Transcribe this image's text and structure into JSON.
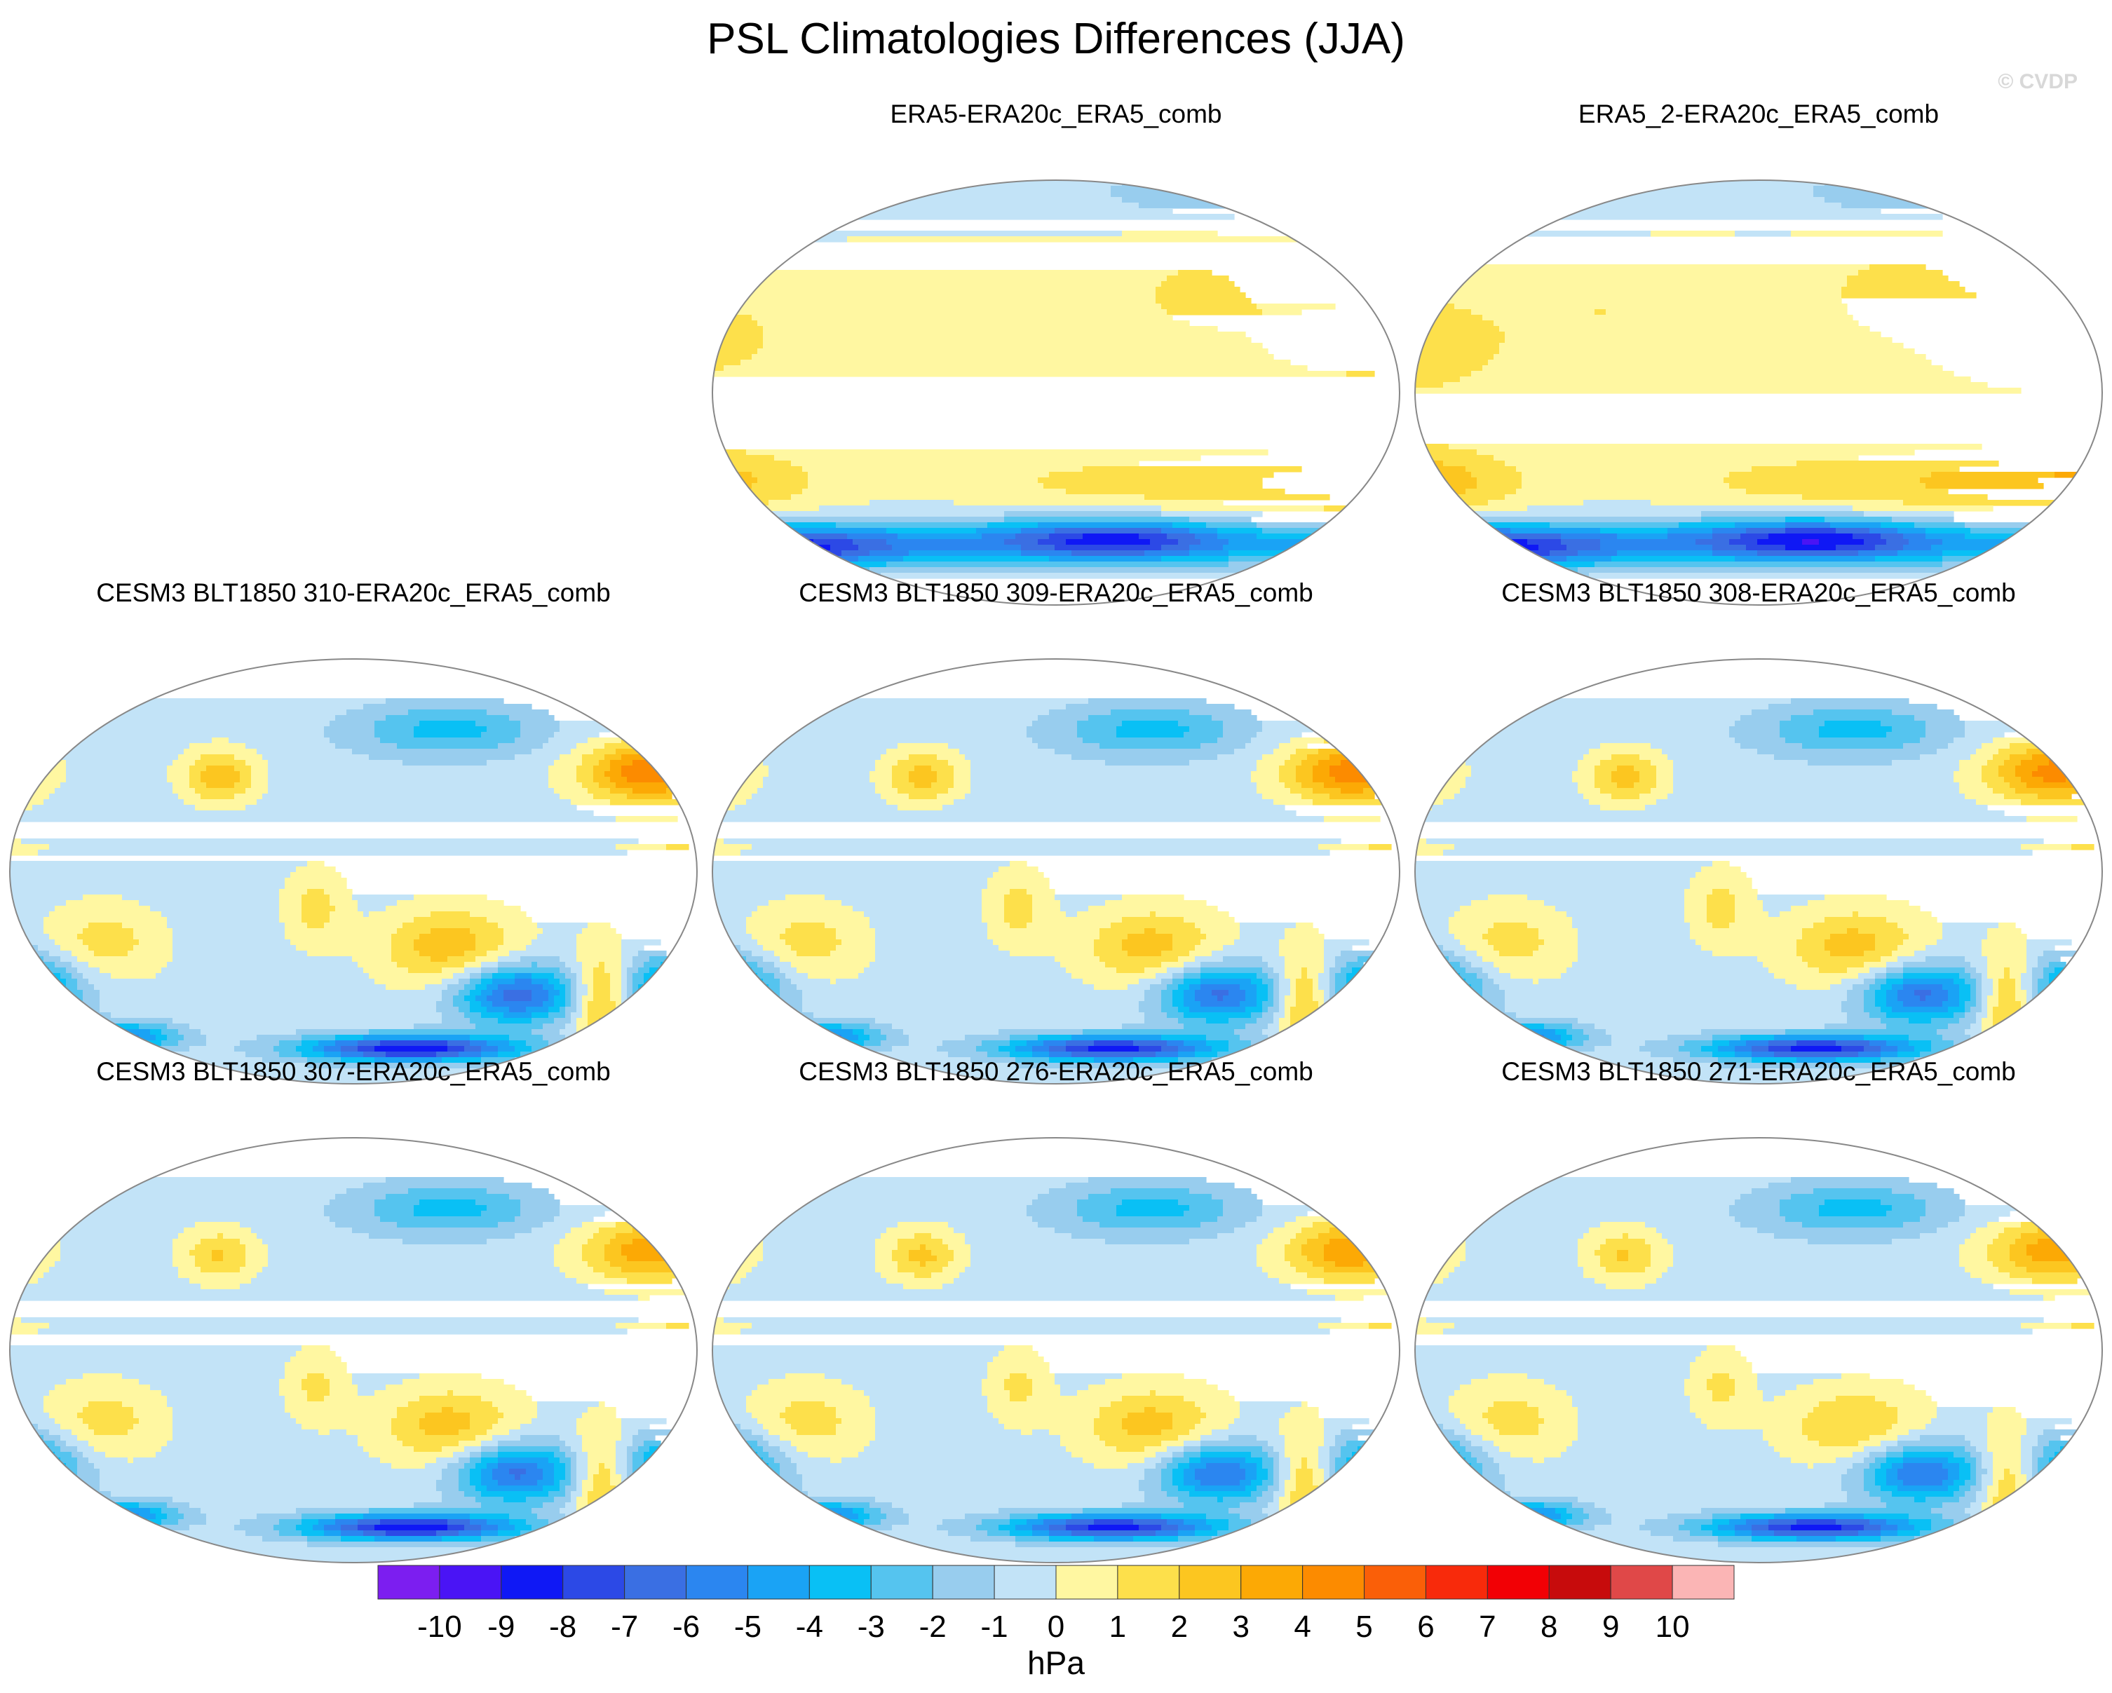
{
  "figure": {
    "title": "PSL Climatologies Differences (JJA)",
    "watermark": "© CVDP"
  },
  "chart_data": {
    "type": "heatmap",
    "projection": "robinson",
    "units": "hPa",
    "season": "JJA",
    "variable": "PSL",
    "colorbar": {
      "label": "hPa",
      "levels": [
        "-10",
        "-9",
        "-8",
        "-7",
        "-6",
        "-5",
        "-4",
        "-3",
        "-2",
        "-1",
        "0",
        "1",
        "2",
        "3",
        "4",
        "5",
        "6",
        "7",
        "8",
        "9",
        "10"
      ],
      "colors": [
        "#7c1ef0",
        "#4a14f5",
        "#0f18f5",
        "#2c49e6",
        "#3a6fe3",
        "#2b86f0",
        "#1aa3f5",
        "#09c0f5",
        "#55c4ef",
        "#98cdee",
        "#c2e3f7",
        "#fff7a1",
        "#fde04b",
        "#fcc620",
        "#fca905",
        "#fc8b00",
        "#fa5f08",
        "#f82a0b",
        "#f20005",
        "#c70b0c",
        "#e04848",
        "#fbb5b5"
      ]
    },
    "panels": [
      {
        "title": "ERA5-ERA20c_ERA5_comb",
        "kind": "reanalysis",
        "blobs": [
          {
            "lon": 150,
            "lat": 20,
            "sx": 75,
            "sy": 22,
            "v": 0.8
          },
          {
            "lon": -150,
            "lat": 25,
            "sx": 45,
            "sy": 18,
            "v": 0.7
          },
          {
            "lon": -45,
            "lat": 35,
            "sx": 30,
            "sy": 13,
            "v": 0.7
          },
          {
            "lon": 100,
            "lat": 45,
            "sx": 25,
            "sy": 12,
            "v": 0.9
          },
          {
            "lon": 130,
            "lat": -38,
            "sx": 55,
            "sy": 10,
            "v": 1.6
          },
          {
            "lon": -150,
            "lat": -38,
            "sx": 40,
            "sy": 10,
            "v": 2.0
          },
          {
            "lon": 30,
            "lat": -38,
            "sx": 40,
            "sy": 8,
            "v": 0.8
          },
          {
            "lon": 180,
            "lat": 85,
            "sx": 80,
            "sy": 8,
            "v": -3.2
          },
          {
            "lon": 0,
            "lat": -64,
            "sx": 200,
            "sy": 7,
            "v": -4.2
          },
          {
            "lon": -120,
            "lat": -66,
            "sx": 45,
            "sy": 6,
            "v": -5.5
          },
          {
            "lon": 60,
            "lat": -62,
            "sx": 40,
            "sy": 6,
            "v": -4.8
          }
        ]
      },
      {
        "title": "ERA5_2-ERA20c_ERA5_comb",
        "kind": "reanalysis",
        "blobs": [
          {
            "lon": 150,
            "lat": 18,
            "sx": 85,
            "sy": 24,
            "v": 0.9
          },
          {
            "lon": -150,
            "lat": 22,
            "sx": 50,
            "sy": 20,
            "v": 0.8
          },
          {
            "lon": -45,
            "lat": 35,
            "sx": 30,
            "sy": 13,
            "v": 0.8
          },
          {
            "lon": 100,
            "lat": 45,
            "sx": 25,
            "sy": 12,
            "v": 1.1
          },
          {
            "lon": 130,
            "lat": -38,
            "sx": 55,
            "sy": 10,
            "v": 1.8
          },
          {
            "lon": -150,
            "lat": -38,
            "sx": 40,
            "sy": 10,
            "v": 2.4
          },
          {
            "lon": 30,
            "lat": -38,
            "sx": 40,
            "sy": 8,
            "v": 0.9
          },
          {
            "lon": 180,
            "lat": 85,
            "sx": 80,
            "sy": 8,
            "v": -3.2
          },
          {
            "lon": 0,
            "lat": -64,
            "sx": 200,
            "sy": 7,
            "v": -4.4
          },
          {
            "lon": -120,
            "lat": -66,
            "sx": 45,
            "sy": 6,
            "v": -5.5
          },
          {
            "lon": 60,
            "lat": -62,
            "sx": 40,
            "sy": 6,
            "v": -5.0
          }
        ]
      },
      {
        "title": "CESM3 BLT1850 310-ERA20c_ERA5_comb",
        "kind": "model",
        "blobs": [
          {
            "lon": -175,
            "lat": 42,
            "sx": 24,
            "sy": 9,
            "v": 5.2
          },
          {
            "lon": -40,
            "lat": 40,
            "sx": 14,
            "sy": 8,
            "v": 3.2
          },
          {
            "lon": 80,
            "lat": -32,
            "sx": 26,
            "sy": 12,
            "v": 3.2
          },
          {
            "lon": -100,
            "lat": -30,
            "sx": 22,
            "sy": 12,
            "v": 2.0
          },
          {
            "lon": 10,
            "lat": -15,
            "sx": 12,
            "sy": 12,
            "v": 2.0
          },
          {
            "lon": 160,
            "lat": -55,
            "sx": 10,
            "sy": 16,
            "v": 3.4
          },
          {
            "lon": 115,
            "lat": -52,
            "sx": 22,
            "sy": 9,
            "v": -6.3
          },
          {
            "lon": -150,
            "lat": -50,
            "sx": 24,
            "sy": 10,
            "v": -6.5
          },
          {
            "lon": -160,
            "lat": 10,
            "sx": 20,
            "sy": 2,
            "v": 1.5
          },
          {
            "lon": 80,
            "lat": 60,
            "sx": 35,
            "sy": 8,
            "v": -3.0
          },
          {
            "lon": 0,
            "lat": 0,
            "sx": 180,
            "sy": 80,
            "v": -0.6
          },
          {
            "lon": 60,
            "lat": -75,
            "sx": 40,
            "sy": 4,
            "v": -8.5
          },
          {
            "lon": -90,
            "lat": -70,
            "sx": 20,
            "sy": 4,
            "v": -5.0
          }
        ]
      },
      {
        "title": "CESM3 BLT1850 309-ERA20c_ERA5_comb",
        "kind": "model",
        "blobs": [
          {
            "lon": -175,
            "lat": 42,
            "sx": 24,
            "sy": 9,
            "v": 5.0
          },
          {
            "lon": -40,
            "lat": 40,
            "sx": 14,
            "sy": 8,
            "v": 3.0
          },
          {
            "lon": 80,
            "lat": -32,
            "sx": 26,
            "sy": 12,
            "v": 3.0
          },
          {
            "lon": -100,
            "lat": -30,
            "sx": 22,
            "sy": 12,
            "v": 2.0
          },
          {
            "lon": 10,
            "lat": -15,
            "sx": 12,
            "sy": 12,
            "v": 2.0
          },
          {
            "lon": 160,
            "lat": -55,
            "sx": 10,
            "sy": 16,
            "v": 3.2
          },
          {
            "lon": 115,
            "lat": -52,
            "sx": 22,
            "sy": 9,
            "v": -6.0
          },
          {
            "lon": -150,
            "lat": -50,
            "sx": 24,
            "sy": 10,
            "v": -6.3
          },
          {
            "lon": -160,
            "lat": 10,
            "sx": 20,
            "sy": 2,
            "v": 1.5
          },
          {
            "lon": 80,
            "lat": 60,
            "sx": 35,
            "sy": 8,
            "v": -3.0
          },
          {
            "lon": 0,
            "lat": 0,
            "sx": 180,
            "sy": 80,
            "v": -0.6
          },
          {
            "lon": 60,
            "lat": -75,
            "sx": 40,
            "sy": 4,
            "v": -8.0
          },
          {
            "lon": -90,
            "lat": -70,
            "sx": 20,
            "sy": 4,
            "v": -5.0
          }
        ]
      },
      {
        "title": "CESM3 BLT1850 308-ERA20c_ERA5_comb",
        "kind": "model",
        "blobs": [
          {
            "lon": -175,
            "lat": 42,
            "sx": 24,
            "sy": 9,
            "v": 4.8
          },
          {
            "lon": -40,
            "lat": 40,
            "sx": 14,
            "sy": 8,
            "v": 3.0
          },
          {
            "lon": 80,
            "lat": -32,
            "sx": 26,
            "sy": 12,
            "v": 3.0
          },
          {
            "lon": -100,
            "lat": -30,
            "sx": 22,
            "sy": 12,
            "v": 2.0
          },
          {
            "lon": 10,
            "lat": -15,
            "sx": 12,
            "sy": 12,
            "v": 2.0
          },
          {
            "lon": 160,
            "lat": -55,
            "sx": 10,
            "sy": 16,
            "v": 3.2
          },
          {
            "lon": 115,
            "lat": -52,
            "sx": 22,
            "sy": 9,
            "v": -6.0
          },
          {
            "lon": -150,
            "lat": -50,
            "sx": 24,
            "sy": 10,
            "v": -6.2
          },
          {
            "lon": -160,
            "lat": 10,
            "sx": 20,
            "sy": 2,
            "v": 1.5
          },
          {
            "lon": 80,
            "lat": 60,
            "sx": 35,
            "sy": 8,
            "v": -3.0
          },
          {
            "lon": 0,
            "lat": 0,
            "sx": 180,
            "sy": 80,
            "v": -0.6
          },
          {
            "lon": 60,
            "lat": -75,
            "sx": 40,
            "sy": 4,
            "v": -8.0
          },
          {
            "lon": -90,
            "lat": -70,
            "sx": 20,
            "sy": 4,
            "v": -5.0
          }
        ]
      },
      {
        "title": "CESM3 BLT1850 307-ERA20c_ERA5_comb",
        "kind": "model",
        "blobs": [
          {
            "lon": -175,
            "lat": 42,
            "sx": 24,
            "sy": 9,
            "v": 4.0
          },
          {
            "lon": -40,
            "lat": 40,
            "sx": 14,
            "sy": 8,
            "v": 2.6
          },
          {
            "lon": 80,
            "lat": -32,
            "sx": 26,
            "sy": 12,
            "v": 3.0
          },
          {
            "lon": -100,
            "lat": -30,
            "sx": 22,
            "sy": 12,
            "v": 2.0
          },
          {
            "lon": 10,
            "lat": -15,
            "sx": 12,
            "sy": 12,
            "v": 1.8
          },
          {
            "lon": 160,
            "lat": -55,
            "sx": 10,
            "sy": 16,
            "v": 3.0
          },
          {
            "lon": 115,
            "lat": -52,
            "sx": 22,
            "sy": 9,
            "v": -6.0
          },
          {
            "lon": -150,
            "lat": -50,
            "sx": 24,
            "sy": 10,
            "v": -6.2
          },
          {
            "lon": -160,
            "lat": 10,
            "sx": 20,
            "sy": 2,
            "v": 1.5
          },
          {
            "lon": 80,
            "lat": 60,
            "sx": 35,
            "sy": 8,
            "v": -3.0
          },
          {
            "lon": 0,
            "lat": 0,
            "sx": 180,
            "sy": 80,
            "v": -0.6
          },
          {
            "lon": 60,
            "lat": -75,
            "sx": 40,
            "sy": 4,
            "v": -8.5
          },
          {
            "lon": -90,
            "lat": -70,
            "sx": 20,
            "sy": 4,
            "v": -5.0
          }
        ]
      },
      {
        "title": "CESM3 BLT1850 276-ERA20c_ERA5_comb",
        "kind": "model",
        "blobs": [
          {
            "lon": -175,
            "lat": 42,
            "sx": 24,
            "sy": 9,
            "v": 4.2
          },
          {
            "lon": -40,
            "lat": 40,
            "sx": 14,
            "sy": 8,
            "v": 2.8
          },
          {
            "lon": 80,
            "lat": -32,
            "sx": 26,
            "sy": 12,
            "v": 3.0
          },
          {
            "lon": -100,
            "lat": -30,
            "sx": 22,
            "sy": 12,
            "v": 2.0
          },
          {
            "lon": 10,
            "lat": -15,
            "sx": 12,
            "sy": 12,
            "v": 1.8
          },
          {
            "lon": 160,
            "lat": -55,
            "sx": 10,
            "sy": 16,
            "v": 3.0
          },
          {
            "lon": 115,
            "lat": -52,
            "sx": 22,
            "sy": 9,
            "v": -5.8
          },
          {
            "lon": -150,
            "lat": -50,
            "sx": 24,
            "sy": 10,
            "v": -6.0
          },
          {
            "lon": -160,
            "lat": 10,
            "sx": 20,
            "sy": 2,
            "v": 1.5
          },
          {
            "lon": 80,
            "lat": 60,
            "sx": 35,
            "sy": 8,
            "v": -3.0
          },
          {
            "lon": 0,
            "lat": 0,
            "sx": 180,
            "sy": 80,
            "v": -0.6
          },
          {
            "lon": 60,
            "lat": -75,
            "sx": 40,
            "sy": 4,
            "v": -8.0
          },
          {
            "lon": -90,
            "lat": -70,
            "sx": 20,
            "sy": 4,
            "v": -5.0
          }
        ]
      },
      {
        "title": "CESM3 BLT1850 271-ERA20c_ERA5_comb",
        "kind": "model",
        "blobs": [
          {
            "lon": -175,
            "lat": 42,
            "sx": 24,
            "sy": 9,
            "v": 4.0
          },
          {
            "lon": -40,
            "lat": 40,
            "sx": 14,
            "sy": 8,
            "v": 2.6
          },
          {
            "lon": 80,
            "lat": -32,
            "sx": 26,
            "sy": 12,
            "v": 2.6
          },
          {
            "lon": -100,
            "lat": -30,
            "sx": 22,
            "sy": 12,
            "v": 2.0
          },
          {
            "lon": 10,
            "lat": -15,
            "sx": 12,
            "sy": 12,
            "v": 1.8
          },
          {
            "lon": 160,
            "lat": -55,
            "sx": 10,
            "sy": 16,
            "v": 2.8
          },
          {
            "lon": 115,
            "lat": -52,
            "sx": 22,
            "sy": 9,
            "v": -5.8
          },
          {
            "lon": -150,
            "lat": -50,
            "sx": 24,
            "sy": 10,
            "v": -6.0
          },
          {
            "lon": -160,
            "lat": 10,
            "sx": 20,
            "sy": 2,
            "v": 1.5
          },
          {
            "lon": 80,
            "lat": 60,
            "sx": 35,
            "sy": 8,
            "v": -3.0
          },
          {
            "lon": 0,
            "lat": 0,
            "sx": 180,
            "sy": 80,
            "v": -0.6
          },
          {
            "lon": 60,
            "lat": -75,
            "sx": 40,
            "sy": 4,
            "v": -8.0
          },
          {
            "lon": -90,
            "lat": -70,
            "sx": 20,
            "sy": 4,
            "v": -5.0
          }
        ]
      }
    ]
  }
}
